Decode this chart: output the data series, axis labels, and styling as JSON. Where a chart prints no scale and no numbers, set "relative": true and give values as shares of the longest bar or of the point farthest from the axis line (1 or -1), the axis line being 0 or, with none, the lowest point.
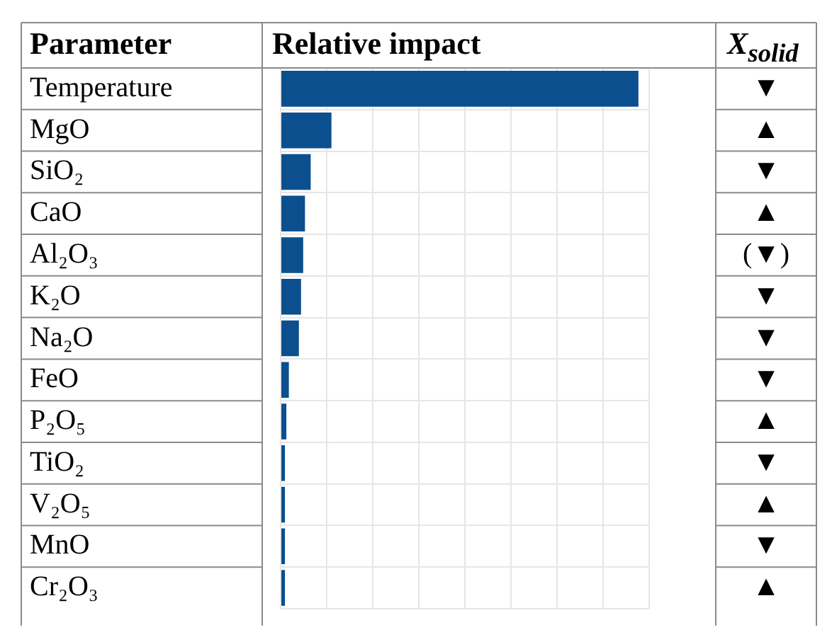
{
  "chart_data": {
    "type": "bar",
    "orientation": "horizontal",
    "relative": true,
    "xlabel": "Relative impact",
    "ylabel": "Parameter",
    "annotations": [
      "X$_{solid}$",
      "▼",
      "▲",
      "▼",
      "▲",
      "(▼)",
      "▼",
      "▼",
      "▼",
      "▲",
      "▼",
      "▲",
      "▼",
      "▲"
    ],
    "categories": [
      "Temperature",
      "MgO",
      "SiO₂",
      "CaO",
      "Al₂O₃",
      "K₂O",
      "Na₂O",
      "FeO",
      "P₂O₅",
      "TiO₂",
      "V₂O₅",
      "MnO",
      "Cr₂O₃"
    ],
    "values": [
      1,
      0.142,
      0.084,
      0.068,
      0.063,
      0.057,
      0.051,
      0.023,
      0.016,
      0.012,
      0.012,
      0.012,
      0.012
    ],
    "color": "#0b4f8f",
    "grid": true,
    "tick_labels": "y"
  }
}
